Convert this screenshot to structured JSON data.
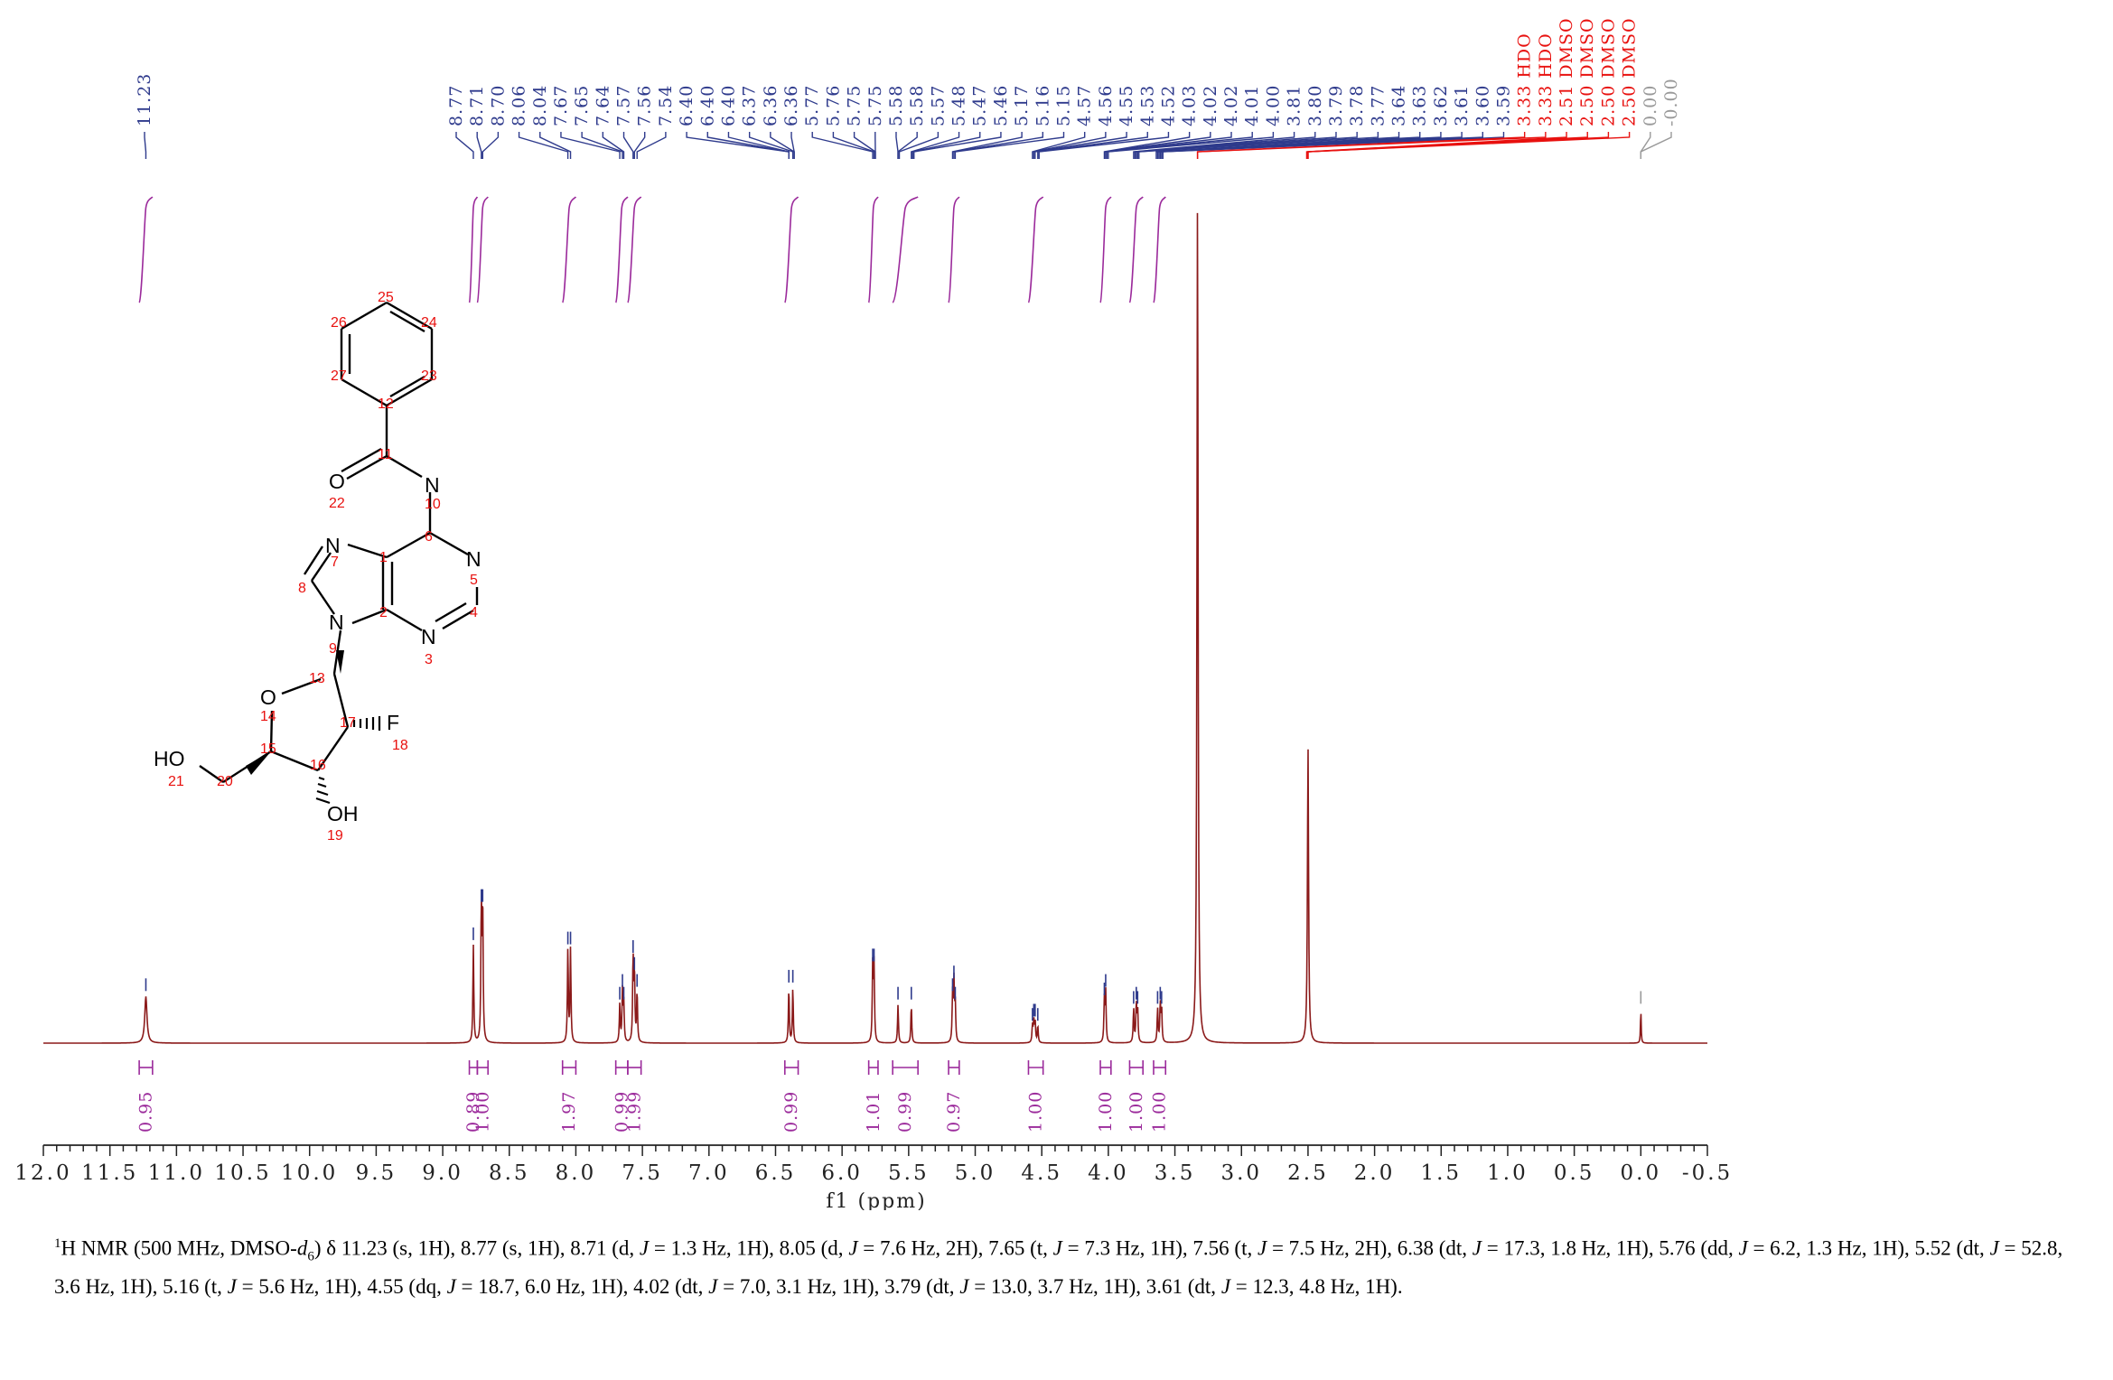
{
  "chart_data": {
    "type": "line",
    "title": "",
    "xlabel": "f1 (ppm)",
    "ylabel": "",
    "xlim": [
      12.0,
      -0.5
    ],
    "x_reversed": true,
    "x_ticks": [
      12.0,
      11.5,
      11.0,
      10.5,
      10.0,
      9.5,
      9.0,
      8.5,
      8.0,
      7.5,
      7.0,
      6.5,
      6.0,
      5.5,
      5.0,
      4.5,
      4.0,
      3.5,
      3.0,
      2.5,
      2.0,
      1.5,
      1.0,
      0.5,
      0.0,
      -0.5
    ],
    "x_tick_labels": [
      "12.0",
      "11.5",
      "11.0",
      "10.5",
      "10.0",
      "9.5",
      "9.0",
      "8.5",
      "8.0",
      "7.5",
      "7.0",
      "6.5",
      "6.0",
      "5.5",
      "5.0",
      "4.5",
      "4.0",
      "3.5",
      "3.0",
      "2.5",
      "2.0",
      "1.5",
      "1.0",
      "0.5",
      "0.0",
      "-0.5"
    ],
    "grid": false,
    "colors": {
      "spectrum": "#8b1a1a",
      "peak_label": "#2e3a8c",
      "solvent_label": "#e8110f",
      "reference_label": "#999999",
      "integral": "#9b2a9b"
    },
    "peaks": [
      {
        "ppm": 11.23,
        "h": 0.055,
        "w": 0.01
      },
      {
        "ppm": 8.77,
        "h": 0.115,
        "w": 0.004
      },
      {
        "ppm": 8.71,
        "h": 0.16,
        "w": 0.004
      },
      {
        "ppm": 8.7,
        "h": 0.16,
        "w": 0.004
      },
      {
        "ppm": 8.06,
        "h": 0.11,
        "w": 0.004
      },
      {
        "ppm": 8.04,
        "h": 0.11,
        "w": 0.004
      },
      {
        "ppm": 7.67,
        "h": 0.045,
        "w": 0.004
      },
      {
        "ppm": 7.65,
        "h": 0.06,
        "w": 0.004
      },
      {
        "ppm": 7.64,
        "h": 0.045,
        "w": 0.004
      },
      {
        "ppm": 7.57,
        "h": 0.1,
        "w": 0.004
      },
      {
        "ppm": 7.56,
        "h": 0.08,
        "w": 0.004
      },
      {
        "ppm": 7.54,
        "h": 0.06,
        "w": 0.004
      },
      {
        "ppm": 6.4,
        "h": 0.065,
        "w": 0.004
      },
      {
        "ppm": 6.37,
        "h": 0.065,
        "w": 0.004
      },
      {
        "ppm": 5.77,
        "h": 0.09,
        "w": 0.004
      },
      {
        "ppm": 5.76,
        "h": 0.09,
        "w": 0.004
      },
      {
        "ppm": 5.58,
        "h": 0.045,
        "w": 0.004
      },
      {
        "ppm": 5.48,
        "h": 0.045,
        "w": 0.004
      },
      {
        "ppm": 5.17,
        "h": 0.055,
        "w": 0.004
      },
      {
        "ppm": 5.16,
        "h": 0.07,
        "w": 0.004
      },
      {
        "ppm": 5.15,
        "h": 0.045,
        "w": 0.004
      },
      {
        "ppm": 4.57,
        "h": 0.02,
        "w": 0.004
      },
      {
        "ppm": 4.56,
        "h": 0.025,
        "w": 0.004
      },
      {
        "ppm": 4.55,
        "h": 0.025,
        "w": 0.004
      },
      {
        "ppm": 4.53,
        "h": 0.02,
        "w": 0.004
      },
      {
        "ppm": 4.03,
        "h": 0.05,
        "w": 0.004
      },
      {
        "ppm": 4.02,
        "h": 0.06,
        "w": 0.004
      },
      {
        "ppm": 3.81,
        "h": 0.04,
        "w": 0.004
      },
      {
        "ppm": 3.79,
        "h": 0.045,
        "w": 0.004
      },
      {
        "ppm": 3.78,
        "h": 0.04,
        "w": 0.004
      },
      {
        "ppm": 3.63,
        "h": 0.04,
        "w": 0.004
      },
      {
        "ppm": 3.61,
        "h": 0.045,
        "w": 0.004
      },
      {
        "ppm": 3.6,
        "h": 0.04,
        "w": 0.004
      },
      {
        "ppm": 3.33,
        "h": 1.0,
        "w": 0.005
      },
      {
        "ppm": 2.5,
        "h": 0.35,
        "w": 0.005
      },
      {
        "ppm": 0.0,
        "h": 0.04,
        "w": 0.003
      }
    ],
    "peak_labels": [
      {
        "text": "11.23",
        "kind": "peak"
      },
      {
        "text": "8.77",
        "kind": "peak"
      },
      {
        "text": "8.71",
        "kind": "peak"
      },
      {
        "text": "8.70",
        "kind": "peak"
      },
      {
        "text": "8.06",
        "kind": "peak"
      },
      {
        "text": "8.04",
        "kind": "peak"
      },
      {
        "text": "7.67",
        "kind": "peak"
      },
      {
        "text": "7.65",
        "kind": "peak"
      },
      {
        "text": "7.64",
        "kind": "peak"
      },
      {
        "text": "7.57",
        "kind": "peak"
      },
      {
        "text": "7.56",
        "kind": "peak"
      },
      {
        "text": "7.54",
        "kind": "peak"
      },
      {
        "text": "6.40",
        "kind": "peak"
      },
      {
        "text": "6.40",
        "kind": "peak"
      },
      {
        "text": "6.40",
        "kind": "peak"
      },
      {
        "text": "6.37",
        "kind": "peak"
      },
      {
        "text": "6.36",
        "kind": "peak"
      },
      {
        "text": "6.36",
        "kind": "peak"
      },
      {
        "text": "5.77",
        "kind": "peak"
      },
      {
        "text": "5.76",
        "kind": "peak"
      },
      {
        "text": "5.75",
        "kind": "peak"
      },
      {
        "text": "5.75",
        "kind": "peak"
      },
      {
        "text": "5.58",
        "kind": "peak"
      },
      {
        "text": "5.58",
        "kind": "peak"
      },
      {
        "text": "5.57",
        "kind": "peak"
      },
      {
        "text": "5.48",
        "kind": "peak"
      },
      {
        "text": "5.47",
        "kind": "peak"
      },
      {
        "text": "5.46",
        "kind": "peak"
      },
      {
        "text": "5.17",
        "kind": "peak"
      },
      {
        "text": "5.16",
        "kind": "peak"
      },
      {
        "text": "5.15",
        "kind": "peak"
      },
      {
        "text": "4.57",
        "kind": "peak"
      },
      {
        "text": "4.56",
        "kind": "peak"
      },
      {
        "text": "4.55",
        "kind": "peak"
      },
      {
        "text": "4.53",
        "kind": "peak"
      },
      {
        "text": "4.52",
        "kind": "peak"
      },
      {
        "text": "4.03",
        "kind": "peak"
      },
      {
        "text": "4.02",
        "kind": "peak"
      },
      {
        "text": "4.02",
        "kind": "peak"
      },
      {
        "text": "4.01",
        "kind": "peak"
      },
      {
        "text": "4.00",
        "kind": "peak"
      },
      {
        "text": "3.81",
        "kind": "peak"
      },
      {
        "text": "3.80",
        "kind": "peak"
      },
      {
        "text": "3.79",
        "kind": "peak"
      },
      {
        "text": "3.78",
        "kind": "peak"
      },
      {
        "text": "3.77",
        "kind": "peak"
      },
      {
        "text": "3.64",
        "kind": "peak"
      },
      {
        "text": "3.63",
        "kind": "peak"
      },
      {
        "text": "3.62",
        "kind": "peak"
      },
      {
        "text": "3.61",
        "kind": "peak"
      },
      {
        "text": "3.60",
        "kind": "peak"
      },
      {
        "text": "3.59",
        "kind": "peak"
      },
      {
        "text": "3.33 HDO",
        "kind": "solvent"
      },
      {
        "text": "3.33 HDO",
        "kind": "solvent"
      },
      {
        "text": "2.51 DMSO",
        "kind": "solvent"
      },
      {
        "text": "2.50 DMSO",
        "kind": "solvent"
      },
      {
        "text": "2.50 DMSO",
        "kind": "solvent"
      },
      {
        "text": "2.50 DMSO",
        "kind": "solvent"
      },
      {
        "text": "0.00",
        "kind": "reference"
      },
      {
        "text": "-0.00",
        "kind": "reference"
      }
    ],
    "integrals": [
      {
        "from": 11.28,
        "to": 11.18,
        "value": "0.95"
      },
      {
        "from": 8.8,
        "to": 8.74,
        "value": "0.89"
      },
      {
        "from": 8.74,
        "to": 8.66,
        "value": "1.00"
      },
      {
        "from": 8.1,
        "to": 8.0,
        "value": "1.97"
      },
      {
        "from": 7.7,
        "to": 7.61,
        "value": "0.99"
      },
      {
        "from": 7.61,
        "to": 7.51,
        "value": "1.99"
      },
      {
        "from": 6.43,
        "to": 6.33,
        "value": "0.99"
      },
      {
        "from": 5.8,
        "to": 5.73,
        "value": "1.01"
      },
      {
        "from": 5.62,
        "to": 5.43,
        "value": "0.99"
      },
      {
        "from": 5.2,
        "to": 5.12,
        "value": "0.97"
      },
      {
        "from": 4.6,
        "to": 4.49,
        "value": "1.00"
      },
      {
        "from": 4.06,
        "to": 3.98,
        "value": "1.00"
      },
      {
        "from": 3.84,
        "to": 3.74,
        "value": "1.00"
      },
      {
        "from": 3.66,
        "to": 3.57,
        "value": "1.00"
      }
    ]
  },
  "structure": {
    "atoms": [
      "N",
      "N",
      "N",
      "N",
      "N",
      "NH",
      "O",
      "O",
      "O",
      "F",
      "HO",
      "OH"
    ],
    "numbers": [
      "1",
      "2",
      "3",
      "4",
      "5",
      "6",
      "7",
      "8",
      "9",
      "10",
      "11",
      "12",
      "13",
      "14",
      "15",
      "16",
      "17",
      "18",
      "19",
      "20",
      "21",
      "22",
      "23",
      "24",
      "25",
      "26",
      "27"
    ]
  },
  "description": {
    "nucleus_sup": "1",
    "head": "H NMR (500 MHz, DMSO-",
    "solvent_d": "d",
    "solvent_sub": "6",
    "after_solvent": ") δ 11.23 (s, 1H), 8.77 (s, 1H), 8.71 (d, ",
    "segments": [
      {
        "j": "J",
        "text": " = 1.3 Hz, 1H), 8.05 (d, "
      },
      {
        "j": "J",
        "text": " = 7.6 Hz, 2H), 7.65 (t, "
      },
      {
        "j": "J",
        "text": " = 7.3 Hz, 1H), 7.56 (t, "
      },
      {
        "j": "J",
        "text": " = 7.5 Hz, 2H), 6.38 (dt, "
      },
      {
        "j": "J",
        "text": " = 17.3, 1.8 Hz, 1H), 5.76 (dd, "
      },
      {
        "j": "J",
        "text": " = 6.2, 1.3 Hz, 1H), 5.52 (dt, "
      },
      {
        "j": "J",
        "text": " = 52.8, 3.6 Hz, 1H), 5.16 (t, "
      },
      {
        "j": "J",
        "text": " = 5.6 Hz, 1H), 4.55 (dq, "
      },
      {
        "j": "J",
        "text": " = 18.7, 6.0 Hz, 1H), 4.02 (dt, "
      },
      {
        "j": "J",
        "text": " = 7.0, 3.1 Hz, 1H), 3.79 (dt, "
      },
      {
        "j": "J",
        "text": " = 13.0, 3.7 Hz, 1H), 3.61 (dt, "
      },
      {
        "j": "J",
        "text": " = 12.3, 4.8 Hz, 1H)."
      }
    ]
  }
}
